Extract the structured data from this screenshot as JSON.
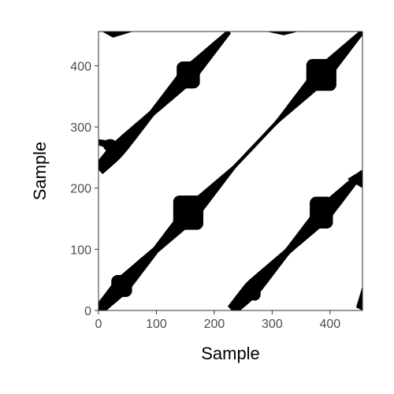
{
  "chart_data": {
    "type": "heatmap",
    "subtype": "recurrence-plot",
    "title": "",
    "xlabel": "Sample",
    "ylabel": "Sample",
    "xlim": [
      0,
      456
    ],
    "ylim": [
      0,
      456
    ],
    "xticks": [
      0,
      100,
      200,
      300,
      400
    ],
    "yticks": [
      0,
      100,
      200,
      300,
      400
    ],
    "grid": false,
    "legend": "none",
    "colors": {
      "recurrent": "#000000",
      "background": "#ffffff",
      "frame": "#333333"
    },
    "period": 230,
    "diagonal_bands": [
      {
        "offset": 0,
        "x_range": [
          0,
          456
        ]
      },
      {
        "offset": 230,
        "x_range": [
          0,
          226
        ]
      },
      {
        "offset": -230,
        "x_range": [
          230,
          456
        ]
      }
    ],
    "recurrence_blocks": [
      {
        "center": [
          40,
          40
        ]
      },
      {
        "center": [
          155,
          160
        ]
      },
      {
        "center": [
          385,
          385
        ]
      },
      {
        "center": [
          155,
          385
        ]
      },
      {
        "center": [
          385,
          160
        ]
      },
      {
        "center": [
          270,
          30
        ]
      },
      {
        "center": [
          20,
          270
        ]
      }
    ]
  }
}
